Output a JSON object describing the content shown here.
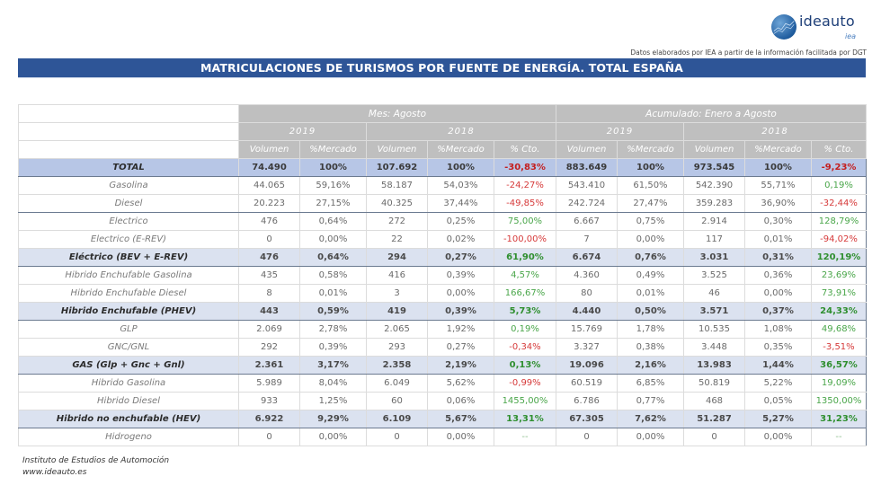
{
  "logo": {
    "brand": "ideauto",
    "sub": "iea"
  },
  "source_note": "Datos elaborados por IEA a partir de la información facilitada por DGT",
  "title": "MATRICULACIONES DE TURISMOS POR FUENTE DE ENERGÍA. TOTAL ESPAÑA",
  "headers": {
    "group_month": "Mes: Agosto",
    "group_ytd": "Acumulado: Enero a Agosto",
    "year_2019": "2019",
    "year_2018": "2018",
    "volumen": "Volumen",
    "mercado": "%Mercado",
    "cto": "% Cto."
  },
  "rows": [
    {
      "label": "TOTAL",
      "type": "total",
      "m19v": "74.490",
      "m19p": "100%",
      "m18v": "107.692",
      "m18p": "100%",
      "mc": "-30,83%",
      "a19v": "883.649",
      "a19p": "100%",
      "a18v": "973.545",
      "a18p": "100%",
      "ac": "-9,23%"
    },
    {
      "label": "Gasolina",
      "type": "item",
      "m19v": "44.065",
      "m19p": "59,16%",
      "m18v": "58.187",
      "m18p": "54,03%",
      "mc": "-24,27%",
      "a19v": "543.410",
      "a19p": "61,50%",
      "a18v": "542.390",
      "a18p": "55,71%",
      "ac": "0,19%"
    },
    {
      "label": "Diesel",
      "type": "item",
      "m19v": "20.223",
      "m19p": "27,15%",
      "m18v": "40.325",
      "m18p": "37,44%",
      "mc": "-49,85%",
      "a19v": "242.724",
      "a19p": "27,47%",
      "a18v": "359.283",
      "a18p": "36,90%",
      "ac": "-32,44%"
    },
    {
      "label": "Electrico",
      "type": "item",
      "m19v": "476",
      "m19p": "0,64%",
      "m18v": "272",
      "m18p": "0,25%",
      "mc": "75,00%",
      "a19v": "6.667",
      "a19p": "0,75%",
      "a18v": "2.914",
      "a18p": "0,30%",
      "ac": "128,79%"
    },
    {
      "label": "Electrico (E-REV)",
      "type": "item",
      "m19v": "0",
      "m19p": "0,00%",
      "m18v": "22",
      "m18p": "0,02%",
      "mc": "-100,00%",
      "a19v": "7",
      "a19p": "0,00%",
      "a18v": "117",
      "a18p": "0,01%",
      "ac": "-94,02%"
    },
    {
      "label": "Eléctrico (BEV + E-REV)",
      "type": "sum",
      "m19v": "476",
      "m19p": "0,64%",
      "m18v": "294",
      "m18p": "0,27%",
      "mc": "61,90%",
      "a19v": "6.674",
      "a19p": "0,76%",
      "a18v": "3.031",
      "a18p": "0,31%",
      "ac": "120,19%"
    },
    {
      "label": "Hibrido Enchufable Gasolina",
      "type": "item",
      "m19v": "435",
      "m19p": "0,58%",
      "m18v": "416",
      "m18p": "0,39%",
      "mc": "4,57%",
      "a19v": "4.360",
      "a19p": "0,49%",
      "a18v": "3.525",
      "a18p": "0,36%",
      "ac": "23,69%"
    },
    {
      "label": "Hibrido Enchufable Diesel",
      "type": "item",
      "m19v": "8",
      "m19p": "0,01%",
      "m18v": "3",
      "m18p": "0,00%",
      "mc": "166,67%",
      "a19v": "80",
      "a19p": "0,01%",
      "a18v": "46",
      "a18p": "0,00%",
      "ac": "73,91%"
    },
    {
      "label": "Hibrido Enchufable (PHEV)",
      "type": "sum",
      "m19v": "443",
      "m19p": "0,59%",
      "m18v": "419",
      "m18p": "0,39%",
      "mc": "5,73%",
      "a19v": "4.440",
      "a19p": "0,50%",
      "a18v": "3.571",
      "a18p": "0,37%",
      "ac": "24,33%"
    },
    {
      "label": "GLP",
      "type": "item",
      "m19v": "2.069",
      "m19p": "2,78%",
      "m18v": "2.065",
      "m18p": "1,92%",
      "mc": "0,19%",
      "a19v": "15.769",
      "a19p": "1,78%",
      "a18v": "10.535",
      "a18p": "1,08%",
      "ac": "49,68%"
    },
    {
      "label": "GNC/GNL",
      "type": "item",
      "m19v": "292",
      "m19p": "0,39%",
      "m18v": "293",
      "m18p": "0,27%",
      "mc": "-0,34%",
      "a19v": "3.327",
      "a19p": "0,38%",
      "a18v": "3.448",
      "a18p": "0,35%",
      "ac": "-3,51%"
    },
    {
      "label": "GAS (Glp + Gnc + Gnl)",
      "type": "sum",
      "m19v": "2.361",
      "m19p": "3,17%",
      "m18v": "2.358",
      "m18p": "2,19%",
      "mc": "0,13%",
      "a19v": "19.096",
      "a19p": "2,16%",
      "a18v": "13.983",
      "a18p": "1,44%",
      "ac": "36,57%"
    },
    {
      "label": "Hibrido Gasolina",
      "type": "item",
      "m19v": "5.989",
      "m19p": "8,04%",
      "m18v": "6.049",
      "m18p": "5,62%",
      "mc": "-0,99%",
      "a19v": "60.519",
      "a19p": "6,85%",
      "a18v": "50.819",
      "a18p": "5,22%",
      "ac": "19,09%"
    },
    {
      "label": "Hibrido Diesel",
      "type": "item",
      "m19v": "933",
      "m19p": "1,25%",
      "m18v": "60",
      "m18p": "0,06%",
      "mc": "1455,00%",
      "a19v": "6.786",
      "a19p": "0,77%",
      "a18v": "468",
      "a18p": "0,05%",
      "ac": "1350,00%"
    },
    {
      "label": "Hibrido no enchufable (HEV)",
      "type": "sum",
      "m19v": "6.922",
      "m19p": "9,29%",
      "m18v": "6.109",
      "m18p": "5,67%",
      "mc": "13,31%",
      "a19v": "67.305",
      "a19p": "7,62%",
      "a18v": "51.287",
      "a18p": "5,27%",
      "ac": "31,23%"
    },
    {
      "label": "Hidrogeno",
      "type": "item",
      "m19v": "0",
      "m19p": "0,00%",
      "m18v": "0",
      "m18p": "0,00%",
      "mc": "--",
      "a19v": "0",
      "a19p": "0,00%",
      "a18v": "0",
      "a18p": "0,00%",
      "ac": "--"
    }
  ],
  "footer": {
    "institute": "Instituto de Estudios de Automoción",
    "website": "www.ideauto.es"
  },
  "colors": {
    "title_bar": "#2e5597",
    "header_gray": "#bfbfbf",
    "total_row": "#b7c6e6",
    "subtotal_row": "#dbe2f0",
    "negative": "#d63a3a",
    "positive": "#4aa64a"
  }
}
